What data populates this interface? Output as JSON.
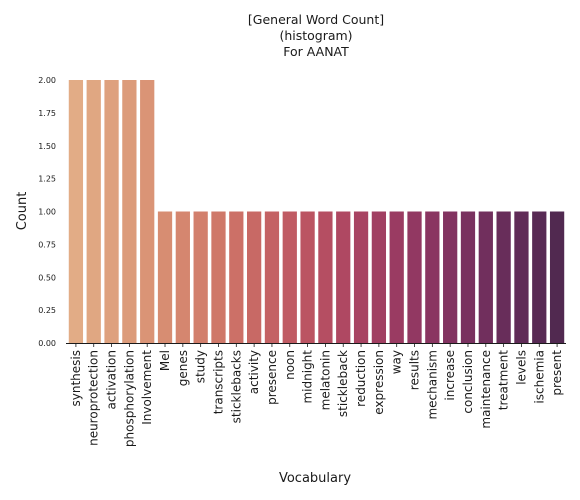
{
  "chart_data": {
    "type": "bar",
    "title_lines": [
      "[General Word Count]",
      "(histogram)",
      "For AANAT"
    ],
    "xlabel": "Vocabulary",
    "ylabel": "Count",
    "ylim": [
      0,
      2.0
    ],
    "yticks": [
      "0.00",
      "0.25",
      "0.50",
      "0.75",
      "1.00",
      "1.25",
      "1.50",
      "1.75",
      "2.00"
    ],
    "grid": false,
    "categories": [
      "synthesis",
      "neuroprotection",
      "activation",
      "phosphorylation",
      "Involvement",
      "Mel",
      "genes",
      "study",
      "transcripts",
      "sticklebacks",
      "activity",
      "presence",
      "noon",
      "midnight",
      "melatonin",
      "stickleback",
      "reduction",
      "expression",
      "way",
      "results",
      "mechanism",
      "increase",
      "conclusion",
      "maintenance",
      "treatment",
      "levels",
      "ischemia",
      "present"
    ],
    "values": [
      2,
      2,
      2,
      2,
      2,
      1,
      1,
      1,
      1,
      1,
      1,
      1,
      1,
      1,
      1,
      1,
      1,
      1,
      1,
      1,
      1,
      1,
      1,
      1,
      1,
      1,
      1,
      1
    ],
    "colors": [
      "#e2ac86",
      "#e0a782",
      "#dea17e",
      "#dc9b7a",
      "#da9476",
      "#d78d72",
      "#d5866f",
      "#d27f6c",
      "#cf7869",
      "#cc7067",
      "#c86965",
      "#c46264",
      "#c05b63",
      "#bb5462",
      "#b54e62",
      "#af4862",
      "#a84362",
      "#a13f62",
      "#9a3b62",
      "#923862",
      "#8a3561",
      "#823360",
      "#79315f",
      "#712f5d",
      "#682d5a",
      "#602b57",
      "#582a54",
      "#512950"
    ]
  }
}
